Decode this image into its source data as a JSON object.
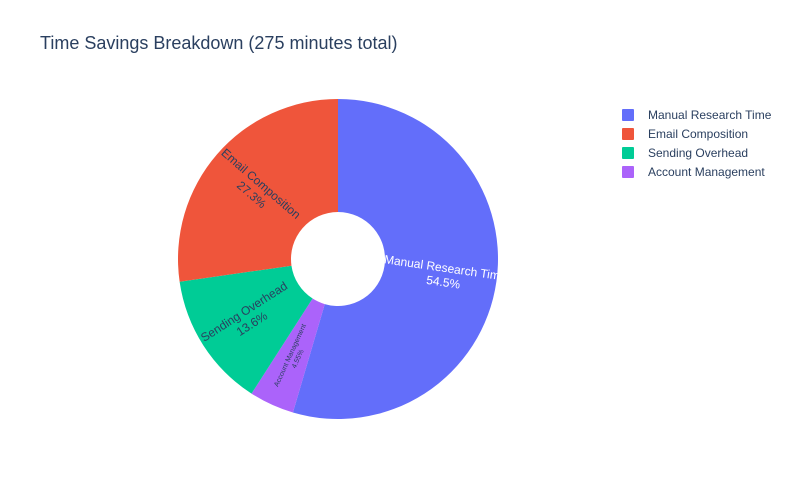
{
  "chart_data": {
    "type": "pie",
    "title": "Time Savings Breakdown (275 minutes total)",
    "hole": true,
    "sort": "clockwise-from-top",
    "legend_position": "top-right",
    "slices": [
      {
        "label": "Manual Research Time",
        "value": 150,
        "percent_label": "54.5%",
        "color": "#636efa"
      },
      {
        "label": "Account Management",
        "value": 12.5,
        "percent_label": "4.55%",
        "color": "#ab63fa"
      },
      {
        "label": "Sending Overhead",
        "value": 37.5,
        "percent_label": "13.6%",
        "color": "#00cc96"
      },
      {
        "label": "Email Composition",
        "value": 75,
        "percent_label": "27.3%",
        "color": "#ef553b"
      }
    ],
    "legend": [
      {
        "label": "Manual Research Time",
        "color": "#636efa"
      },
      {
        "label": "Email Composition",
        "color": "#ef553b"
      },
      {
        "label": "Sending Overhead",
        "color": "#00cc96"
      },
      {
        "label": "Account Management",
        "color": "#ab63fa"
      }
    ]
  }
}
